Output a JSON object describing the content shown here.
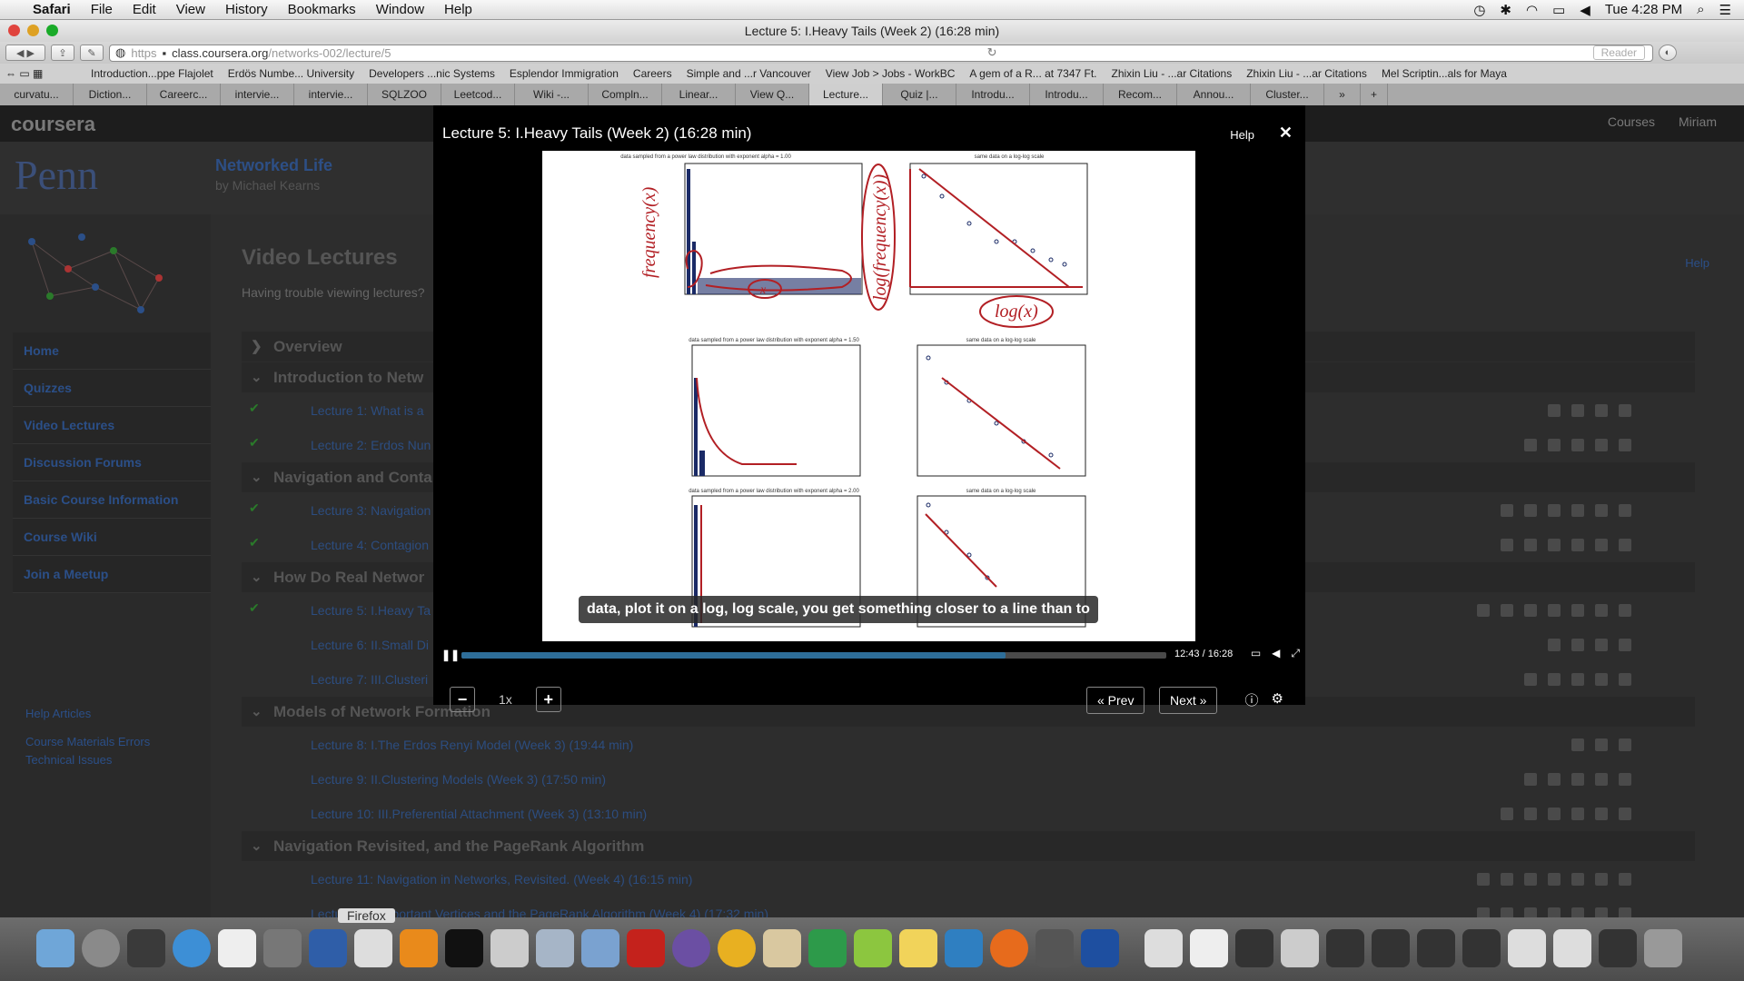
{
  "menubar": {
    "app": "Safari",
    "menus": [
      "File",
      "Edit",
      "View",
      "History",
      "Bookmarks",
      "Window",
      "Help"
    ],
    "clock": "Tue 4:28 PM"
  },
  "window": {
    "title": "Lecture 5: I.Heavy Tails (Week 2) (16:28 min)"
  },
  "toolbar": {
    "scheme": "https",
    "domain": "class.coursera.org",
    "path": "/networks-002/lecture/5",
    "reader": "Reader"
  },
  "bookmarks": [
    "Introduction...ppe Flajolet",
    "Erdös Numbe... University",
    "Developers ...nic Systems",
    "Esplendor Immigration",
    "Careers",
    "Simple and ...r Vancouver",
    "View Job > Jobs - WorkBC",
    "A gem of a R... at 7347 Ft.",
    "Zhixin Liu - ...ar Citations",
    "Zhixin Liu - ...ar Citations",
    "Mel Scriptin...als for Maya"
  ],
  "tabs": [
    "curvatu...",
    "Diction...",
    "Careerc...",
    "intervie...",
    "intervie...",
    "SQLZOO",
    "Leetcod...",
    "Wiki -...",
    "Compln...",
    "Linear...",
    "View Q...",
    "Lecture...",
    "Quiz |...",
    "Introdu...",
    "Introdu...",
    "Recom...",
    "Annou...",
    "Cluster..."
  ],
  "site": {
    "logo": "coursera",
    "nav": [
      "Courses",
      "Miriam"
    ],
    "university": "Penn",
    "course_title": "Networked Life",
    "course_by": "by Michael Kearns",
    "sidebar": [
      "Home",
      "Quizzes",
      "Video Lectures",
      "Discussion Forums",
      "Basic Course Information",
      "Course Wiki",
      "Join a Meetup"
    ],
    "help_links": [
      "Help Articles",
      "Course Materials Errors",
      "Technical Issues"
    ],
    "page_title": "Video Lectures",
    "help": "Help",
    "trouble": "Having trouble viewing lectures?",
    "sections": [
      {
        "title": "Overview",
        "lectures": []
      },
      {
        "title": "Introduction to Netw",
        "lectures": [
          {
            "label": "Lecture 1: What is a",
            "done": true
          },
          {
            "label": "Lecture 2: Erdos Nun",
            "done": true
          }
        ]
      },
      {
        "title": "Navigation and Conta",
        "lectures": [
          {
            "label": "Lecture 3: Navigation",
            "done": true
          },
          {
            "label": "Lecture 4: Contagion",
            "done": true
          }
        ]
      },
      {
        "title": "How Do Real Networ",
        "lectures": [
          {
            "label": "Lecture 5: I.Heavy Ta",
            "done": true
          },
          {
            "label": "Lecture 6: II.Small Di",
            "done": false
          },
          {
            "label": "Lecture 7: III.Clusteri",
            "done": false
          }
        ]
      },
      {
        "title": "Models of Network Formation",
        "lectures": [
          {
            "label": "Lecture 8: I.The Erdos Renyi Model (Week 3) (19:44 min)",
            "done": false
          },
          {
            "label": "Lecture 9: II.Clustering Models (Week 3) (17:50 min)",
            "done": false
          },
          {
            "label": "Lecture 10: III.Preferential Attachment (Week 3) (13:10 min)",
            "done": false
          }
        ]
      },
      {
        "title": "Navigation Revisited, and the PageRank Algorithm",
        "lectures": [
          {
            "label": "Lecture 11: Navigation in Networks, Revisited. (Week 4) (16:15 min)",
            "done": false
          },
          {
            "label": "Lecture 12: Important Vertices and the PageRank Algorithm (Week 4) (17:32 min)",
            "done": false
          }
        ]
      }
    ]
  },
  "player": {
    "title": "Lecture 5: I.Heavy Tails (Week 2) (16:28 min)",
    "help": "Help",
    "subtitle": "data, plot it on a log, log scale, you get something closer to a line than to",
    "time": "12:43 / 16:28",
    "progress": 0.772,
    "rate": "1x",
    "prev": "« Prev",
    "next": "Next »",
    "slide_titles": [
      "data sampled from a power law distribution with exponent alpha = 1.00",
      "same data on a log-log scale",
      "data sampled from a power law distribution with exponent alpha = 1.50",
      "same data on a log-log scale",
      "data sampled from a power law distribution with exponent alpha = 2.00",
      "same data on a log-log scale"
    ],
    "annotations": [
      "frequency(x)",
      "log(frequency(x))",
      "log(x)",
      "x"
    ]
  },
  "dock": {
    "tooltip": "Firefox"
  }
}
